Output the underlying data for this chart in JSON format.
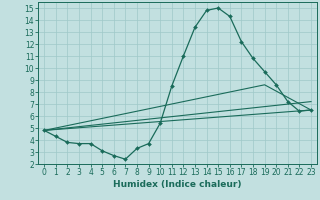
{
  "xlabel": "Humidex (Indice chaleur)",
  "xlim": [
    -0.5,
    23.5
  ],
  "ylim": [
    2,
    15.5
  ],
  "yticks": [
    2,
    3,
    4,
    5,
    6,
    7,
    8,
    9,
    10,
    11,
    12,
    13,
    14,
    15
  ],
  "xticks": [
    0,
    1,
    2,
    3,
    4,
    5,
    6,
    7,
    8,
    9,
    10,
    11,
    12,
    13,
    14,
    15,
    16,
    17,
    18,
    19,
    20,
    21,
    22,
    23
  ],
  "background_color": "#c2e0e0",
  "line_color": "#1a6b5a",
  "grid_color": "#9fc8c8",
  "main_curve": {
    "x": [
      0,
      1,
      2,
      3,
      4,
      5,
      6,
      7,
      8,
      9,
      10,
      11,
      12,
      13,
      14,
      15,
      16,
      17,
      18,
      19,
      20,
      21,
      22,
      23
    ],
    "y": [
      4.8,
      4.3,
      3.8,
      3.7,
      3.7,
      3.1,
      2.7,
      2.4,
      3.3,
      3.7,
      5.4,
      8.5,
      11.0,
      13.4,
      14.8,
      15.0,
      14.3,
      12.2,
      10.8,
      9.7,
      8.6,
      7.2,
      6.4,
      6.5
    ]
  },
  "line1": {
    "x": [
      0,
      23
    ],
    "y": [
      4.8,
      6.5
    ]
  },
  "line2": {
    "x": [
      0,
      23
    ],
    "y": [
      4.8,
      7.2
    ]
  },
  "line3": {
    "x": [
      0,
      19,
      23
    ],
    "y": [
      4.8,
      8.6,
      6.5
    ]
  }
}
